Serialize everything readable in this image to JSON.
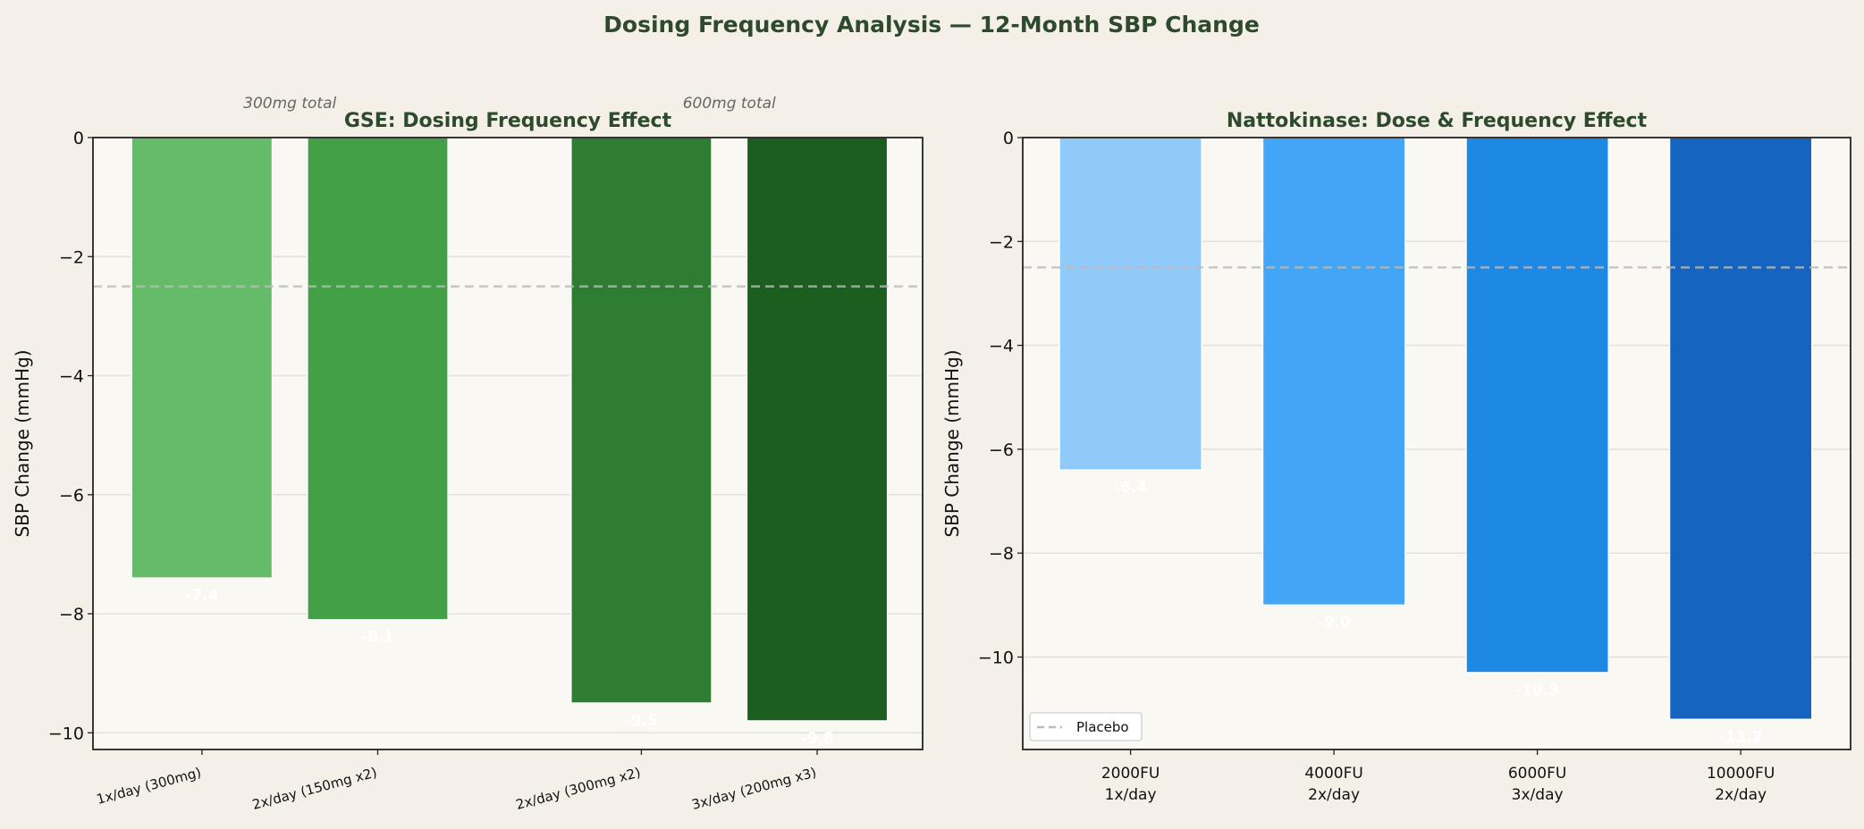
{
  "suptitle": "Dosing Frequency Analysis — 12-Month SBP Change",
  "chart_data": [
    {
      "type": "bar",
      "title": "GSE: Dosing Frequency Effect",
      "ylabel": "SBP Change (mmHg)",
      "xlabel": "",
      "categories": [
        "1x/day (300mg)",
        "2x/day (150mg x2)",
        "2x/day (300mg x2)",
        "3x/day (200mg x3)"
      ],
      "x": [
        0,
        1,
        2.5,
        3.5
      ],
      "values": [
        -7.4,
        -8.1,
        -9.5,
        -9.8
      ],
      "value_labels": [
        "-7.4",
        "-8.1",
        "-9.5",
        "-9.8"
      ],
      "colors": [
        "#66bb6a",
        "#43a047",
        "#2e7d32",
        "#1b5e20"
      ],
      "ylim": [
        -10.28,
        0
      ],
      "xlim": [
        -0.62,
        4.1
      ],
      "yticks": [
        0,
        -2,
        -4,
        -6,
        -8,
        -10
      ],
      "ytick_labels": [
        "0",
        "−2",
        "−4",
        "−6",
        "−8",
        "−10"
      ],
      "grid": true,
      "reference_line": {
        "label": "Placebo",
        "value": -2.5
      },
      "annotations": [
        {
          "text": "300mg total",
          "x": 0.5
        },
        {
          "text": "600mg total",
          "x": 3.0
        }
      ],
      "tick_rotation": 15
    },
    {
      "type": "bar",
      "title": "Nattokinase: Dose & Frequency Effect",
      "ylabel": "SBP Change (mmHg)",
      "xlabel": "",
      "categories": [
        [
          "2000FU",
          "1x/day"
        ],
        [
          "4000FU",
          "2x/day"
        ],
        [
          "6000FU",
          "3x/day"
        ],
        [
          "10000FU",
          "2x/day"
        ]
      ],
      "x": [
        0,
        1,
        2,
        3
      ],
      "values": [
        -6.4,
        -9.0,
        -10.3,
        -11.2
      ],
      "value_labels": [
        "-6.4",
        "-9.0",
        "-10.3",
        "-11.2"
      ],
      "colors": [
        "#90caf9",
        "#42a5f5",
        "#1e88e5",
        "#1565c0"
      ],
      "ylim": [
        -11.78,
        0
      ],
      "xlim": [
        -0.53,
        3.54
      ],
      "yticks": [
        0,
        -2,
        -4,
        -6,
        -8,
        -10
      ],
      "ytick_labels": [
        "0",
        "−2",
        "−4",
        "−6",
        "−8",
        "−10"
      ],
      "grid": true,
      "reference_line": {
        "label": "Placebo",
        "value": -2.5
      },
      "legend": {
        "position": "lower-left",
        "entries": [
          "Placebo"
        ]
      }
    }
  ],
  "colors": {
    "background": "#f4f0e8",
    "axes_bg": "#faf8f3",
    "title": "#2d4a2d",
    "placebo": "#bbbbbb"
  }
}
